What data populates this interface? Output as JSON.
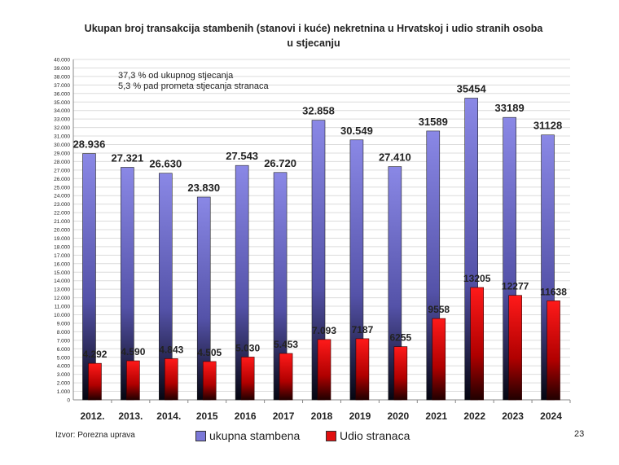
{
  "chart_data": {
    "type": "bar",
    "title": "Ukupan broj transakcija stambenih (stanovi i kuće) nekretnina u Hrvatskoj i udio stranih osoba u stjecanju",
    "categories": [
      "2012.",
      "2013.",
      "2014.",
      "2015",
      "2016",
      "2017",
      "2018",
      "2019",
      "2020",
      "2021",
      "2022",
      "2023",
      "2024"
    ],
    "series": [
      {
        "name": "ukupna stambena",
        "color": "#7b78d8",
        "values": [
          28936,
          27321,
          26630,
          23830,
          27543,
          26720,
          32858,
          30549,
          27410,
          31589,
          35454,
          33189,
          31128
        ],
        "labels": [
          "28.936",
          "27.321",
          "26.630",
          "23.830",
          "27.543",
          "26.720",
          "32.858",
          "30.549",
          "27.410",
          "31589",
          "35454",
          "33189",
          "31128"
        ]
      },
      {
        "name": "Udio stranaca",
        "color": "#e01010",
        "values": [
          4292,
          4590,
          4843,
          4505,
          5030,
          5453,
          7093,
          7187,
          6255,
          9558,
          13205,
          12277,
          11638
        ],
        "labels": [
          "4.292",
          "4.590",
          "4.843",
          "4.505",
          "5.030",
          "5.453",
          "7.093",
          "7187",
          "6255",
          "9558",
          "13205",
          "12277",
          "11638"
        ]
      }
    ],
    "ylim": [
      0,
      40000
    ],
    "yticks": [
      "0",
      "1.000",
      "2.000",
      "3.000",
      "4.000",
      "5.000",
      "6.000",
      "7.000",
      "8.000",
      "9.000",
      "10.000",
      "11.000",
      "12.000",
      "13.000",
      "14.000",
      "15.000",
      "16.000",
      "17.000",
      "18.000",
      "19.000",
      "20.000",
      "21.000",
      "22.000",
      "23.000",
      "24.000",
      "25.000",
      "26.000",
      "27.000",
      "28.000",
      "29.000",
      "30.000",
      "31.000",
      "32.000",
      "33.000",
      "34.000",
      "35.000",
      "36.000",
      "37.000",
      "38.000",
      "39.000",
      "40.000"
    ],
    "grid": true,
    "legend": "bottom",
    "annotations": [
      "37,3 % od ukupnog stjecanja",
      "5,3 % pad prometa stjecanja stranaca"
    ]
  },
  "source": "Izvor: Porezna uprava",
  "page_number": "23"
}
